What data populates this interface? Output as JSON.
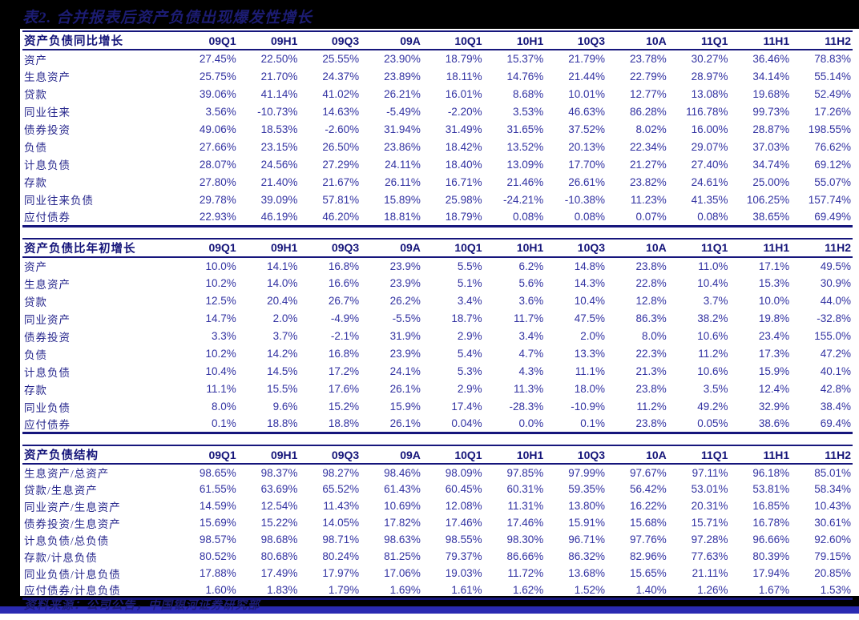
{
  "page": {
    "title": "表2. 合并报表后资产负债出现爆发性增长",
    "source_note": "资料来源：公司公告，中国银河证券研究部"
  },
  "colors": {
    "background": "#000000",
    "panel": "#ffffff",
    "border_navy": "#16167c",
    "header_text": "#15157a",
    "label_text": "#26268c",
    "value_text": "#3232a2",
    "title_text": "#1c1c72",
    "bottom_bar_blue": "#2a2ab2"
  },
  "columns": [
    "09Q1",
    "09H1",
    "09Q3",
    "09A",
    "10Q1",
    "10H1",
    "10Q3",
    "10A",
    "11Q1",
    "11H1",
    "11H2"
  ],
  "tables": [
    {
      "name": "资产负债同比增长",
      "rows": [
        {
          "label": "资产",
          "values": [
            "27.45%",
            "22.50%",
            "25.55%",
            "23.90%",
            "18.79%",
            "15.37%",
            "21.79%",
            "23.78%",
            "30.27%",
            "36.46%",
            "78.83%"
          ]
        },
        {
          "label": "生息资产",
          "values": [
            "25.75%",
            "21.70%",
            "24.37%",
            "23.89%",
            "18.11%",
            "14.76%",
            "21.44%",
            "22.79%",
            "28.97%",
            "34.14%",
            "55.14%"
          ]
        },
        {
          "label": "贷款",
          "values": [
            "39.06%",
            "41.14%",
            "41.02%",
            "26.21%",
            "16.01%",
            "8.68%",
            "10.01%",
            "12.77%",
            "13.08%",
            "19.68%",
            "52.49%"
          ]
        },
        {
          "label": "同业往来",
          "values": [
            "3.56%",
            "-10.73%",
            "14.63%",
            "-5.49%",
            "-2.20%",
            "3.53%",
            "46.63%",
            "86.28%",
            "116.78%",
            "99.73%",
            "17.26%"
          ]
        },
        {
          "label": "债券投资",
          "values": [
            "49.06%",
            "18.53%",
            "-2.60%",
            "31.94%",
            "31.49%",
            "31.65%",
            "37.52%",
            "8.02%",
            "16.00%",
            "28.87%",
            "198.55%"
          ]
        },
        {
          "label": "负债",
          "values": [
            "27.66%",
            "23.15%",
            "26.50%",
            "23.86%",
            "18.42%",
            "13.52%",
            "20.13%",
            "22.34%",
            "29.07%",
            "37.03%",
            "76.62%"
          ]
        },
        {
          "label": "计息负债",
          "values": [
            "28.07%",
            "24.56%",
            "27.29%",
            "24.11%",
            "18.40%",
            "13.09%",
            "17.70%",
            "21.27%",
            "27.40%",
            "34.74%",
            "69.12%"
          ]
        },
        {
          "label": "存款",
          "values": [
            "27.80%",
            "21.40%",
            "21.67%",
            "26.11%",
            "16.71%",
            "21.46%",
            "26.61%",
            "23.82%",
            "24.61%",
            "25.00%",
            "55.07%"
          ]
        },
        {
          "label": "同业往来负债",
          "values": [
            "29.78%",
            "39.09%",
            "57.81%",
            "15.89%",
            "25.98%",
            "-24.21%",
            "-10.38%",
            "11.23%",
            "41.35%",
            "106.25%",
            "157.74%"
          ]
        },
        {
          "label": "应付债券",
          "values": [
            "22.93%",
            "46.19%",
            "46.20%",
            "18.81%",
            "18.79%",
            "0.08%",
            "0.08%",
            "0.07%",
            "0.08%",
            "38.65%",
            "69.49%"
          ]
        }
      ]
    },
    {
      "name": "资产负债比年初增长",
      "rows": [
        {
          "label": "资产",
          "values": [
            "10.0%",
            "14.1%",
            "16.8%",
            "23.9%",
            "5.5%",
            "6.2%",
            "14.8%",
            "23.8%",
            "11.0%",
            "17.1%",
            "49.5%"
          ]
        },
        {
          "label": "生息资产",
          "values": [
            "10.2%",
            "14.0%",
            "16.6%",
            "23.9%",
            "5.1%",
            "5.6%",
            "14.3%",
            "22.8%",
            "10.4%",
            "15.3%",
            "30.9%"
          ]
        },
        {
          "label": "贷款",
          "values": [
            "12.5%",
            "20.4%",
            "26.7%",
            "26.2%",
            "3.4%",
            "3.6%",
            "10.4%",
            "12.8%",
            "3.7%",
            "10.0%",
            "44.0%"
          ]
        },
        {
          "label": "同业资产",
          "values": [
            "14.7%",
            "2.0%",
            "-4.9%",
            "-5.5%",
            "18.7%",
            "11.7%",
            "47.5%",
            "86.3%",
            "38.2%",
            "19.8%",
            "-32.8%"
          ]
        },
        {
          "label": "债券投资",
          "values": [
            "3.3%",
            "3.7%",
            "-2.1%",
            "31.9%",
            "2.9%",
            "3.4%",
            "2.0%",
            "8.0%",
            "10.6%",
            "23.4%",
            "155.0%"
          ]
        },
        {
          "label": "负债",
          "values": [
            "10.2%",
            "14.2%",
            "16.8%",
            "23.9%",
            "5.4%",
            "4.7%",
            "13.3%",
            "22.3%",
            "11.2%",
            "17.3%",
            "47.2%"
          ]
        },
        {
          "label": "计息负债",
          "values": [
            "10.4%",
            "14.5%",
            "17.2%",
            "24.1%",
            "5.3%",
            "4.3%",
            "11.1%",
            "21.3%",
            "10.6%",
            "15.9%",
            "40.1%"
          ]
        },
        {
          "label": "存款",
          "values": [
            "11.1%",
            "15.5%",
            "17.6%",
            "26.1%",
            "2.9%",
            "11.3%",
            "18.0%",
            "23.8%",
            "3.5%",
            "12.4%",
            "42.8%"
          ]
        },
        {
          "label": "同业负债",
          "values": [
            "8.0%",
            "9.6%",
            "15.2%",
            "15.9%",
            "17.4%",
            "-28.3%",
            "-10.9%",
            "11.2%",
            "49.2%",
            "32.9%",
            "38.4%"
          ]
        },
        {
          "label": "应付债券",
          "values": [
            "0.1%",
            "18.8%",
            "18.8%",
            "26.1%",
            "0.04%",
            "0.0%",
            "0.1%",
            "23.8%",
            "0.05%",
            "38.6%",
            "69.4%"
          ]
        }
      ]
    },
    {
      "name": "资产负债结构",
      "rows": [
        {
          "label": "生息资产/总资产",
          "values": [
            "98.65%",
            "98.37%",
            "98.27%",
            "98.46%",
            "98.09%",
            "97.85%",
            "97.99%",
            "97.67%",
            "97.11%",
            "96.18%",
            "85.01%"
          ]
        },
        {
          "label": "贷款/生息资产",
          "values": [
            "61.55%",
            "63.69%",
            "65.52%",
            "61.43%",
            "60.45%",
            "60.31%",
            "59.35%",
            "56.42%",
            "53.01%",
            "53.81%",
            "58.34%"
          ]
        },
        {
          "label": "同业资产/生息资产",
          "values": [
            "14.59%",
            "12.54%",
            "11.43%",
            "10.69%",
            "12.08%",
            "11.31%",
            "13.80%",
            "16.22%",
            "20.31%",
            "16.85%",
            "10.43%"
          ]
        },
        {
          "label": "债券投资/生息资产",
          "values": [
            "15.69%",
            "15.22%",
            "14.05%",
            "17.82%",
            "17.46%",
            "17.46%",
            "15.91%",
            "15.68%",
            "15.71%",
            "16.78%",
            "30.61%"
          ]
        },
        {
          "label": "计息负债/总负债",
          "values": [
            "98.57%",
            "98.68%",
            "98.71%",
            "98.63%",
            "98.55%",
            "98.30%",
            "96.71%",
            "97.76%",
            "97.28%",
            "96.66%",
            "92.60%"
          ]
        },
        {
          "label": "存款/计息负债",
          "values": [
            "80.52%",
            "80.68%",
            "80.24%",
            "81.25%",
            "79.37%",
            "86.66%",
            "86.32%",
            "82.96%",
            "77.63%",
            "80.39%",
            "79.15%"
          ]
        },
        {
          "label": "同业负债/计息负债",
          "values": [
            "17.88%",
            "17.49%",
            "17.97%",
            "17.06%",
            "19.03%",
            "11.72%",
            "13.68%",
            "15.65%",
            "21.11%",
            "17.94%",
            "20.85%"
          ]
        },
        {
          "label": "应付债券/计息负债",
          "values": [
            "1.60%",
            "1.83%",
            "1.79%",
            "1.69%",
            "1.61%",
            "1.62%",
            "1.52%",
            "1.40%",
            "1.26%",
            "1.67%",
            "1.53%"
          ]
        }
      ]
    }
  ]
}
